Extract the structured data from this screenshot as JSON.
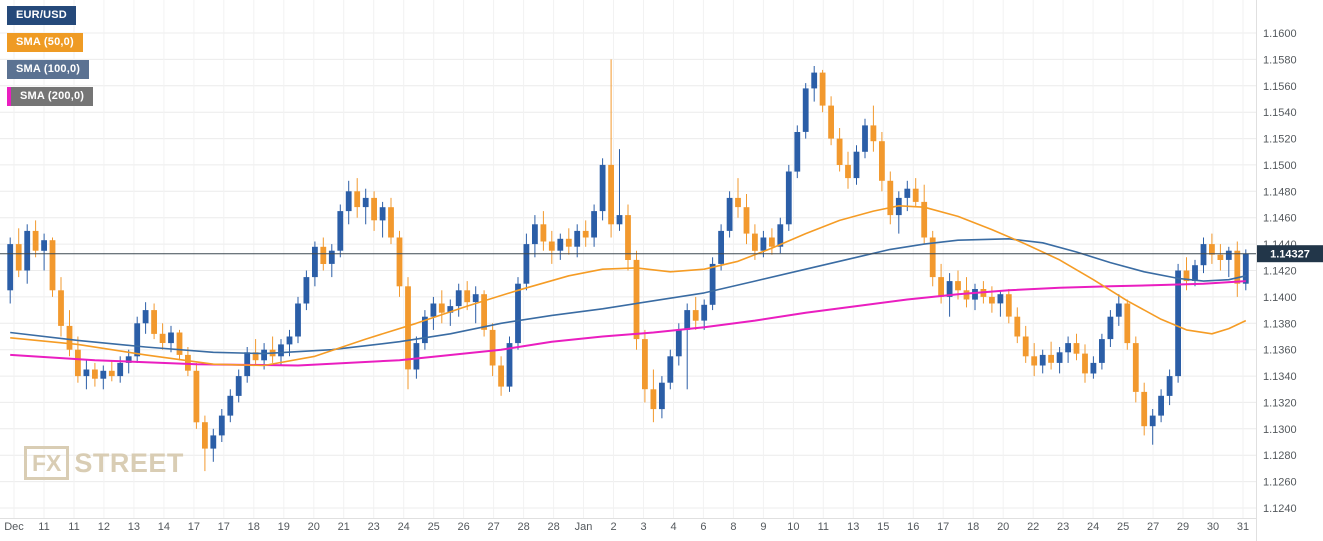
{
  "watermark": {
    "fx": "FX",
    "street": "STREET"
  },
  "chart_data": {
    "type": "candlestick",
    "pair": "EUR/USD",
    "legend": [
      {
        "label": "EUR/USD",
        "chip_color": "#25497a"
      },
      {
        "label": "SMA (50,0)",
        "chip_color": "#ef9b24",
        "line_color": "#f59c25"
      },
      {
        "label": "SMA (100,0)",
        "chip_color": "#5b7292",
        "line_color": "#3a6ca3"
      },
      {
        "label": "SMA (200,0)",
        "chip_color": "#757575",
        "line_color": "#ea1ec0",
        "stripe": "#ea1ec0"
      }
    ],
    "y_axis": {
      "min": 1.124,
      "max": 1.16,
      "ticks": [
        "1.1600",
        "1.1580",
        "1.1560",
        "1.1540",
        "1.1520",
        "1.1500",
        "1.1480",
        "1.1460",
        "1.1440",
        "1.1420",
        "1.1400",
        "1.1380",
        "1.1360",
        "1.1340",
        "1.1320",
        "1.1300",
        "1.1280",
        "1.1260",
        "1.1240"
      ]
    },
    "x_labels": [
      "Dec",
      "11",
      "11",
      "12",
      "13",
      "14",
      "17",
      "17",
      "18",
      "19",
      "20",
      "21",
      "23",
      "24",
      "25",
      "26",
      "27",
      "28",
      "28",
      "Jan",
      "2",
      "3",
      "4",
      "6",
      "8",
      "9",
      "10",
      "11",
      "13",
      "15",
      "16",
      "17",
      "18",
      "20",
      "22",
      "23",
      "24",
      "25",
      "27",
      "29",
      "30",
      "31"
    ],
    "current_price": {
      "label": "1.14327",
      "value": 1.14327
    },
    "colors": {
      "up": "#2b5ea7",
      "down": "#f2992e",
      "sma50": "#f59c25",
      "sma100": "#3a6ca3",
      "sma200": "#ea1ec0",
      "grid_h": "#ececec",
      "grid_v": "#f2f2f2",
      "axis_line": "#e0e0e0",
      "axis_text": "#54595d",
      "price_line": "#3f4a52",
      "price_badge_bg": "#223649",
      "price_badge_text": "#ffffff"
    },
    "candles_ohlc": [
      [
        1.1405,
        1.1445,
        1.1395,
        1.144
      ],
      [
        1.144,
        1.1452,
        1.1415,
        1.142
      ],
      [
        1.142,
        1.1455,
        1.141,
        1.145
      ],
      [
        1.145,
        1.1458,
        1.143,
        1.1435
      ],
      [
        1.1435,
        1.1448,
        1.142,
        1.1443
      ],
      [
        1.1443,
        1.1445,
        1.14,
        1.1405
      ],
      [
        1.1405,
        1.1415,
        1.137,
        1.1378
      ],
      [
        1.1378,
        1.139,
        1.1355,
        1.136
      ],
      [
        1.136,
        1.137,
        1.1335,
        1.134
      ],
      [
        1.134,
        1.1352,
        1.133,
        1.1345
      ],
      [
        1.1345,
        1.135,
        1.1332,
        1.1338
      ],
      [
        1.1338,
        1.1348,
        1.133,
        1.1344
      ],
      [
        1.1344,
        1.1352,
        1.1336,
        1.134
      ],
      [
        1.134,
        1.1355,
        1.1335,
        1.135
      ],
      [
        1.135,
        1.136,
        1.1342,
        1.1355
      ],
      [
        1.1355,
        1.1385,
        1.135,
        1.138
      ],
      [
        1.138,
        1.1396,
        1.1372,
        1.139
      ],
      [
        1.139,
        1.1395,
        1.1368,
        1.1372
      ],
      [
        1.1372,
        1.138,
        1.136,
        1.1365
      ],
      [
        1.1365,
        1.1378,
        1.1358,
        1.1373
      ],
      [
        1.1373,
        1.1375,
        1.1352,
        1.1356
      ],
      [
        1.1356,
        1.1362,
        1.134,
        1.1344
      ],
      [
        1.1344,
        1.135,
        1.13,
        1.1305
      ],
      [
        1.1305,
        1.131,
        1.1268,
        1.1285
      ],
      [
        1.1285,
        1.13,
        1.1275,
        1.1295
      ],
      [
        1.1295,
        1.1315,
        1.129,
        1.131
      ],
      [
        1.131,
        1.133,
        1.1305,
        1.1325
      ],
      [
        1.1325,
        1.1345,
        1.132,
        1.134
      ],
      [
        1.134,
        1.1362,
        1.1335,
        1.1358
      ],
      [
        1.1358,
        1.1368,
        1.1348,
        1.1352
      ],
      [
        1.1352,
        1.1365,
        1.1345,
        1.136
      ],
      [
        1.136,
        1.137,
        1.135,
        1.1355
      ],
      [
        1.1355,
        1.1368,
        1.1348,
        1.1364
      ],
      [
        1.1364,
        1.1375,
        1.1355,
        1.137
      ],
      [
        1.137,
        1.14,
        1.1365,
        1.1395
      ],
      [
        1.1395,
        1.142,
        1.139,
        1.1415
      ],
      [
        1.1415,
        1.1442,
        1.1408,
        1.1438
      ],
      [
        1.1438,
        1.1445,
        1.142,
        1.1425
      ],
      [
        1.1425,
        1.144,
        1.1415,
        1.1435
      ],
      [
        1.1435,
        1.147,
        1.143,
        1.1465
      ],
      [
        1.1465,
        1.1488,
        1.1455,
        1.148
      ],
      [
        1.148,
        1.149,
        1.146,
        1.1468
      ],
      [
        1.1468,
        1.1482,
        1.1455,
        1.1475
      ],
      [
        1.1475,
        1.148,
        1.145,
        1.1458
      ],
      [
        1.1458,
        1.1472,
        1.1445,
        1.1468
      ],
      [
        1.1468,
        1.1475,
        1.144,
        1.1445
      ],
      [
        1.1445,
        1.145,
        1.14,
        1.1408
      ],
      [
        1.1408,
        1.1415,
        1.133,
        1.1345
      ],
      [
        1.1345,
        1.137,
        1.1338,
        1.1365
      ],
      [
        1.1365,
        1.139,
        1.136,
        1.1385
      ],
      [
        1.1385,
        1.14,
        1.1375,
        1.1395
      ],
      [
        1.1395,
        1.1405,
        1.138,
        1.1388
      ],
      [
        1.1388,
        1.1398,
        1.1378,
        1.1393
      ],
      [
        1.1393,
        1.141,
        1.1385,
        1.1405
      ],
      [
        1.1405,
        1.1412,
        1.139,
        1.1396
      ],
      [
        1.1396,
        1.1408,
        1.138,
        1.1402
      ],
      [
        1.1402,
        1.1405,
        1.137,
        1.1375
      ],
      [
        1.1375,
        1.138,
        1.134,
        1.1348
      ],
      [
        1.1348,
        1.1355,
        1.1325,
        1.1332
      ],
      [
        1.1332,
        1.137,
        1.1328,
        1.1365
      ],
      [
        1.1365,
        1.1415,
        1.136,
        1.141
      ],
      [
        1.141,
        1.1448,
        1.1405,
        1.144
      ],
      [
        1.144,
        1.1462,
        1.143,
        1.1455
      ],
      [
        1.1455,
        1.1465,
        1.1435,
        1.1442
      ],
      [
        1.1442,
        1.145,
        1.1425,
        1.1435
      ],
      [
        1.1435,
        1.1448,
        1.1428,
        1.1444
      ],
      [
        1.1444,
        1.1452,
        1.1432,
        1.1438
      ],
      [
        1.1438,
        1.1455,
        1.143,
        1.145
      ],
      [
        1.145,
        1.1458,
        1.1438,
        1.1445
      ],
      [
        1.1445,
        1.147,
        1.1438,
        1.1465
      ],
      [
        1.1465,
        1.1505,
        1.1458,
        1.15
      ],
      [
        1.15,
        1.158,
        1.1445,
        1.1455
      ],
      [
        1.1455,
        1.1512,
        1.145,
        1.1462
      ],
      [
        1.1462,
        1.147,
        1.142,
        1.1428
      ],
      [
        1.1428,
        1.1435,
        1.136,
        1.1368
      ],
      [
        1.1368,
        1.1375,
        1.132,
        1.133
      ],
      [
        1.133,
        1.1345,
        1.1305,
        1.1315
      ],
      [
        1.1315,
        1.134,
        1.1308,
        1.1335
      ],
      [
        1.1335,
        1.136,
        1.133,
        1.1355
      ],
      [
        1.1355,
        1.138,
        1.1348,
        1.1375
      ],
      [
        1.1375,
        1.1395,
        1.133,
        1.139
      ],
      [
        1.139,
        1.14,
        1.1375,
        1.1382
      ],
      [
        1.1382,
        1.1398,
        1.1375,
        1.1394
      ],
      [
        1.1394,
        1.143,
        1.139,
        1.1425
      ],
      [
        1.1425,
        1.1455,
        1.142,
        1.145
      ],
      [
        1.145,
        1.148,
        1.1445,
        1.1475
      ],
      [
        1.1475,
        1.149,
        1.146,
        1.1468
      ],
      [
        1.1468,
        1.1478,
        1.144,
        1.1448
      ],
      [
        1.1448,
        1.1455,
        1.1428,
        1.1435
      ],
      [
        1.1435,
        1.145,
        1.143,
        1.1445
      ],
      [
        1.1445,
        1.1452,
        1.1432,
        1.1438
      ],
      [
        1.1438,
        1.146,
        1.1433,
        1.1455
      ],
      [
        1.1455,
        1.15,
        1.145,
        1.1495
      ],
      [
        1.1495,
        1.153,
        1.149,
        1.1525
      ],
      [
        1.1525,
        1.1562,
        1.152,
        1.1558
      ],
      [
        1.1558,
        1.1575,
        1.1548,
        1.157
      ],
      [
        1.157,
        1.1572,
        1.154,
        1.1545
      ],
      [
        1.1545,
        1.1552,
        1.1515,
        1.152
      ],
      [
        1.152,
        1.1528,
        1.1495,
        1.15
      ],
      [
        1.15,
        1.151,
        1.1482,
        1.149
      ],
      [
        1.149,
        1.1515,
        1.1485,
        1.151
      ],
      [
        1.151,
        1.1535,
        1.1505,
        1.153
      ],
      [
        1.153,
        1.1545,
        1.151,
        1.1518
      ],
      [
        1.1518,
        1.1525,
        1.148,
        1.1488
      ],
      [
        1.1488,
        1.1495,
        1.1455,
        1.1462
      ],
      [
        1.1462,
        1.148,
        1.1448,
        1.1475
      ],
      [
        1.1475,
        1.1488,
        1.1465,
        1.1482
      ],
      [
        1.1482,
        1.149,
        1.1468,
        1.1472
      ],
      [
        1.1472,
        1.1485,
        1.144,
        1.1445
      ],
      [
        1.1445,
        1.145,
        1.1408,
        1.1415
      ],
      [
        1.1415,
        1.1425,
        1.1395,
        1.14
      ],
      [
        1.14,
        1.1418,
        1.1385,
        1.1412
      ],
      [
        1.1412,
        1.142,
        1.1398,
        1.1405
      ],
      [
        1.1405,
        1.1415,
        1.1392,
        1.1398
      ],
      [
        1.1398,
        1.141,
        1.139,
        1.1406
      ],
      [
        1.1406,
        1.1412,
        1.1395,
        1.14
      ],
      [
        1.14,
        1.1408,
        1.1388,
        1.1395
      ],
      [
        1.1395,
        1.1405,
        1.1385,
        1.1402
      ],
      [
        1.1402,
        1.1406,
        1.138,
        1.1385
      ],
      [
        1.1385,
        1.1392,
        1.1365,
        1.137
      ],
      [
        1.137,
        1.1378,
        1.135,
        1.1355
      ],
      [
        1.1355,
        1.1365,
        1.134,
        1.1348
      ],
      [
        1.1348,
        1.136,
        1.1342,
        1.1356
      ],
      [
        1.1356,
        1.1366,
        1.1345,
        1.135
      ],
      [
        1.135,
        1.1362,
        1.1342,
        1.1358
      ],
      [
        1.1358,
        1.137,
        1.135,
        1.1365
      ],
      [
        1.1365,
        1.1372,
        1.1352,
        1.1357
      ],
      [
        1.1357,
        1.1364,
        1.1335,
        1.1342
      ],
      [
        1.1342,
        1.1355,
        1.1338,
        1.135
      ],
      [
        1.135,
        1.1372,
        1.1345,
        1.1368
      ],
      [
        1.1368,
        1.139,
        1.1362,
        1.1385
      ],
      [
        1.1385,
        1.1402,
        1.1378,
        1.1395
      ],
      [
        1.1395,
        1.1398,
        1.136,
        1.1365
      ],
      [
        1.1365,
        1.137,
        1.132,
        1.1328
      ],
      [
        1.1328,
        1.1335,
        1.1295,
        1.1302
      ],
      [
        1.1302,
        1.1315,
        1.1288,
        1.131
      ],
      [
        1.131,
        1.133,
        1.1305,
        1.1325
      ],
      [
        1.1325,
        1.1345,
        1.1318,
        1.134
      ],
      [
        1.134,
        1.1425,
        1.1335,
        1.142
      ],
      [
        1.142,
        1.143,
        1.1405,
        1.1412
      ],
      [
        1.1412,
        1.1428,
        1.1408,
        1.1424
      ],
      [
        1.1424,
        1.1445,
        1.1418,
        1.144
      ],
      [
        1.144,
        1.1448,
        1.1425,
        1.1432
      ],
      [
        1.1432,
        1.144,
        1.142,
        1.1428
      ],
      [
        1.1428,
        1.1438,
        1.1415,
        1.1435
      ],
      [
        1.1435,
        1.1442,
        1.14,
        1.141
      ],
      [
        1.141,
        1.1436,
        1.1405,
        1.14327
      ]
    ],
    "sma": {
      "sma50_points": [
        [
          0,
          1.1369
        ],
        [
          8,
          1.1364
        ],
        [
          16,
          1.1356
        ],
        [
          24,
          1.1349
        ],
        [
          30,
          1.1348
        ],
        [
          36,
          1.1355
        ],
        [
          42,
          1.1368
        ],
        [
          48,
          1.138
        ],
        [
          54,
          1.1393
        ],
        [
          60,
          1.1405
        ],
        [
          66,
          1.1416
        ],
        [
          70,
          1.1421
        ],
        [
          74,
          1.1422
        ],
        [
          78,
          1.1419
        ],
        [
          82,
          1.1421
        ],
        [
          86,
          1.1427
        ],
        [
          90,
          1.1437
        ],
        [
          94,
          1.1448
        ],
        [
          98,
          1.1458
        ],
        [
          102,
          1.1465
        ],
        [
          105,
          1.1469
        ],
        [
          108,
          1.1468
        ],
        [
          112,
          1.1461
        ],
        [
          116,
          1.1451
        ],
        [
          120,
          1.144
        ],
        [
          124,
          1.1428
        ],
        [
          128,
          1.1413
        ],
        [
          132,
          1.1397
        ],
        [
          136,
          1.1383
        ],
        [
          139,
          1.1375
        ],
        [
          142,
          1.1372
        ],
        [
          144,
          1.1376
        ],
        [
          146,
          1.1382
        ]
      ],
      "sma100_points": [
        [
          0,
          1.1373
        ],
        [
          8,
          1.1367
        ],
        [
          16,
          1.1362
        ],
        [
          24,
          1.1358
        ],
        [
          30,
          1.1357
        ],
        [
          38,
          1.136
        ],
        [
          46,
          1.1366
        ],
        [
          52,
          1.1372
        ],
        [
          58,
          1.138
        ],
        [
          64,
          1.1386
        ],
        [
          70,
          1.1391
        ],
        [
          76,
          1.1397
        ],
        [
          82,
          1.1403
        ],
        [
          88,
          1.1412
        ],
        [
          94,
          1.1421
        ],
        [
          100,
          1.143
        ],
        [
          104,
          1.1436
        ],
        [
          108,
          1.144
        ],
        [
          112,
          1.1443
        ],
        [
          118,
          1.1444
        ],
        [
          122,
          1.1441
        ],
        [
          126,
          1.1434
        ],
        [
          130,
          1.1426
        ],
        [
          134,
          1.1419
        ],
        [
          138,
          1.1414
        ],
        [
          141,
          1.1412
        ],
        [
          144,
          1.1413
        ],
        [
          146,
          1.1416
        ]
      ],
      "sma200_points": [
        [
          0,
          1.1356
        ],
        [
          10,
          1.1352
        ],
        [
          22,
          1.1349
        ],
        [
          34,
          1.1348
        ],
        [
          46,
          1.1352
        ],
        [
          58,
          1.136
        ],
        [
          64,
          1.1366
        ],
        [
          70,
          1.137
        ],
        [
          76,
          1.1373
        ],
        [
          82,
          1.1377
        ],
        [
          88,
          1.1382
        ],
        [
          94,
          1.1388
        ],
        [
          100,
          1.1393
        ],
        [
          106,
          1.1398
        ],
        [
          112,
          1.1402
        ],
        [
          118,
          1.1405
        ],
        [
          124,
          1.1407
        ],
        [
          130,
          1.1408
        ],
        [
          136,
          1.1409
        ],
        [
          141,
          1.141
        ],
        [
          146,
          1.1412
        ]
      ]
    }
  }
}
